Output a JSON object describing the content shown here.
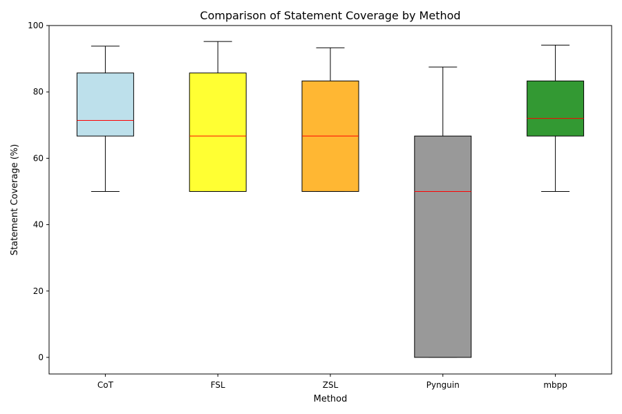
{
  "chart_data": {
    "type": "box",
    "title": "Comparison of Statement Coverage by Method",
    "xlabel": "Method",
    "ylabel": "Statement Coverage (%)",
    "ylim": [
      -5,
      100
    ],
    "yticks": [
      0,
      20,
      40,
      60,
      80,
      100
    ],
    "categories": [
      "CoT",
      "FSL",
      "ZSL",
      "Pynguin",
      "mbpp"
    ],
    "boxes": [
      {
        "category": "CoT",
        "whisker_low": 50,
        "q1": 66.7,
        "median": 71.4,
        "q3": 85.7,
        "whisker_high": 93.8,
        "color": "#add8e6",
        "opacity": 0.8
      },
      {
        "category": "FSL",
        "whisker_low": 50,
        "q1": 50,
        "median": 66.7,
        "q3": 85.7,
        "whisker_high": 95.2,
        "color": "#ffff00",
        "opacity": 0.8
      },
      {
        "category": "ZSL",
        "whisker_low": 50,
        "q1": 50,
        "median": 66.7,
        "q3": 83.3,
        "whisker_high": 93.3,
        "color": "#ffa500",
        "opacity": 0.8
      },
      {
        "category": "Pynguin",
        "whisker_low": 0,
        "q1": 0,
        "median": 50,
        "q3": 66.7,
        "whisker_high": 87.5,
        "color": "#808080",
        "opacity": 0.8
      },
      {
        "category": "mbpp",
        "whisker_low": 50,
        "q1": 66.7,
        "median": 72,
        "q3": 83.3,
        "whisker_high": 94.1,
        "color": "#008000",
        "opacity": 0.8
      }
    ],
    "median_color": "#ff0000",
    "grid": false,
    "legend": "none"
  }
}
